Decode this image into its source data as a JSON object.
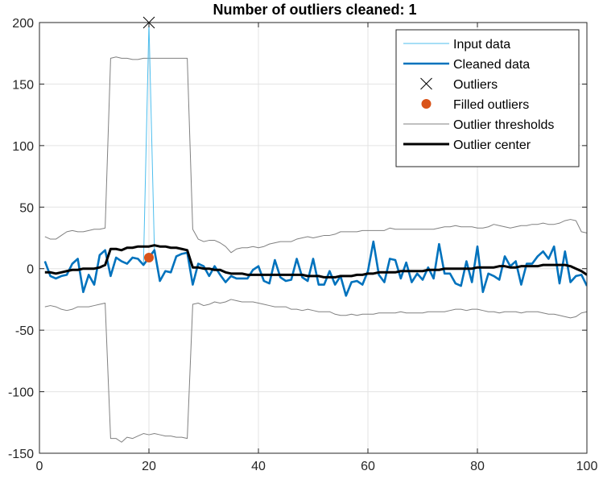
{
  "chart_data": {
    "type": "line",
    "title": "Number of outliers cleaned: 1",
    "xlabel": "",
    "ylabel": "",
    "xlim": [
      0,
      100
    ],
    "ylim": [
      -150,
      200
    ],
    "xticks": [
      0,
      20,
      40,
      60,
      80,
      100
    ],
    "yticks": [
      -150,
      -100,
      -50,
      0,
      50,
      100,
      150,
      200
    ],
    "grid": true,
    "legend_position": "top-right",
    "series": [
      {
        "name": "Input data",
        "color": "#4DBEEE",
        "x": [
          1,
          2,
          3,
          4,
          5,
          6,
          7,
          8,
          9,
          10,
          11,
          12,
          13,
          14,
          15,
          16,
          17,
          18,
          19,
          20,
          21,
          22,
          23,
          24,
          25,
          26,
          27,
          28,
          29,
          30,
          31,
          32,
          33,
          34,
          35,
          36,
          37,
          38,
          39,
          40,
          41,
          42,
          43,
          44,
          45,
          46,
          47,
          48,
          49,
          50,
          51,
          52,
          53,
          54,
          55,
          56,
          57,
          58,
          59,
          60,
          61,
          62,
          63,
          64,
          65,
          66,
          67,
          68,
          69,
          70,
          71,
          72,
          73,
          74,
          75,
          76,
          77,
          78,
          79,
          80,
          81,
          82,
          83,
          84,
          85,
          86,
          87,
          88,
          89,
          90,
          91,
          92,
          93,
          94,
          95,
          96,
          97,
          98,
          99,
          100
        ],
        "y": [
          6,
          -6,
          -8,
          -6,
          -5,
          4,
          8,
          -19,
          -5,
          -13,
          11,
          15,
          -6,
          9,
          6,
          4,
          9,
          8,
          3,
          200,
          15,
          -10,
          -2,
          -3,
          10,
          12,
          13,
          -13,
          4,
          2,
          -6,
          2,
          -5,
          -11,
          -6,
          -8,
          -8,
          -8,
          -1,
          2,
          -10,
          -12,
          7,
          -7,
          -10,
          -9,
          8,
          -7,
          -10,
          8,
          -13,
          -13,
          -2,
          -13,
          -6,
          -22,
          -11,
          -10,
          -13,
          -2,
          22,
          -5,
          -11,
          8,
          7,
          -8,
          5,
          -11,
          -4,
          -9,
          1,
          -8,
          20,
          -4,
          -4,
          -12,
          -14,
          6,
          -11,
          18,
          -19,
          -4,
          -6,
          -9,
          10,
          2,
          6,
          -13,
          4,
          4,
          10,
          14,
          8,
          18,
          -12,
          14,
          -11,
          -6,
          -5,
          -14
        ]
      },
      {
        "name": "Cleaned data",
        "color": "#0072BD",
        "x": [
          1,
          2,
          3,
          4,
          5,
          6,
          7,
          8,
          9,
          10,
          11,
          12,
          13,
          14,
          15,
          16,
          17,
          18,
          19,
          20,
          21,
          22,
          23,
          24,
          25,
          26,
          27,
          28,
          29,
          30,
          31,
          32,
          33,
          34,
          35,
          36,
          37,
          38,
          39,
          40,
          41,
          42,
          43,
          44,
          45,
          46,
          47,
          48,
          49,
          50,
          51,
          52,
          53,
          54,
          55,
          56,
          57,
          58,
          59,
          60,
          61,
          62,
          63,
          64,
          65,
          66,
          67,
          68,
          69,
          70,
          71,
          72,
          73,
          74,
          75,
          76,
          77,
          78,
          79,
          80,
          81,
          82,
          83,
          84,
          85,
          86,
          87,
          88,
          89,
          90,
          91,
          92,
          93,
          94,
          95,
          96,
          97,
          98,
          99,
          100
        ],
        "y": [
          6,
          -6,
          -8,
          -6,
          -5,
          4,
          8,
          -19,
          -5,
          -13,
          11,
          15,
          -6,
          9,
          6,
          4,
          9,
          8,
          3,
          9,
          15,
          -10,
          -2,
          -3,
          10,
          12,
          13,
          -13,
          4,
          2,
          -6,
          2,
          -5,
          -11,
          -6,
          -8,
          -8,
          -8,
          -1,
          2,
          -10,
          -12,
          7,
          -7,
          -10,
          -9,
          8,
          -7,
          -10,
          8,
          -13,
          -13,
          -2,
          -13,
          -6,
          -22,
          -11,
          -10,
          -13,
          -2,
          22,
          -5,
          -11,
          8,
          7,
          -8,
          5,
          -11,
          -4,
          -9,
          1,
          -8,
          20,
          -4,
          -4,
          -12,
          -14,
          6,
          -11,
          18,
          -19,
          -4,
          -6,
          -9,
          10,
          2,
          6,
          -13,
          4,
          4,
          10,
          14,
          8,
          18,
          -12,
          14,
          -11,
          -6,
          -5,
          -14
        ]
      },
      {
        "name": "Outliers",
        "color": "#000000",
        "marker": "x",
        "x": [
          20
        ],
        "y": [
          200
        ]
      },
      {
        "name": "Filled outliers",
        "color": "#D95319",
        "marker": "circle",
        "x": [
          20
        ],
        "y": [
          9
        ]
      },
      {
        "name": "Outlier thresholds",
        "color": "#808080",
        "x": [
          1,
          2,
          3,
          4,
          5,
          6,
          7,
          8,
          9,
          10,
          11,
          12,
          13,
          14,
          15,
          16,
          17,
          18,
          19,
          20,
          21,
          22,
          23,
          24,
          25,
          26,
          27,
          28,
          29,
          30,
          31,
          32,
          33,
          34,
          35,
          36,
          37,
          38,
          39,
          40,
          41,
          42,
          43,
          44,
          45,
          46,
          47,
          48,
          49,
          50,
          51,
          52,
          53,
          54,
          55,
          56,
          57,
          58,
          59,
          60,
          61,
          62,
          63,
          64,
          65,
          66,
          67,
          68,
          69,
          70,
          71,
          72,
          73,
          74,
          75,
          76,
          77,
          78,
          79,
          80,
          81,
          82,
          83,
          84,
          85,
          86,
          87,
          88,
          89,
          90,
          91,
          92,
          93,
          94,
          95,
          96,
          97,
          98,
          99,
          100
        ],
        "upper": [
          26,
          24,
          24,
          27,
          30,
          31,
          30,
          30,
          31,
          32,
          32,
          33,
          171,
          172,
          171,
          171,
          170,
          170,
          171,
          171,
          171,
          171,
          171,
          171,
          171,
          171,
          171,
          32,
          24,
          22,
          23,
          23,
          21,
          18,
          13,
          16,
          17,
          17,
          18,
          17,
          18,
          20,
          21,
          22,
          22,
          22,
          24,
          25,
          26,
          25,
          26,
          27,
          27,
          28,
          30,
          30,
          30,
          30,
          31,
          31,
          31,
          31,
          31,
          33,
          32,
          32,
          32,
          32,
          32,
          32,
          32,
          32,
          33,
          34,
          34,
          35,
          34,
          34,
          34,
          33,
          33,
          34,
          36,
          35,
          34,
          33,
          34,
          35,
          35,
          36,
          36,
          37,
          36,
          36,
          37,
          39,
          40,
          39,
          30,
          29
        ],
        "lower": [
          -31,
          -30,
          -31,
          -33,
          -34,
          -33,
          -31,
          -31,
          -31,
          -30,
          -29,
          -28,
          -138,
          -138,
          -141,
          -137,
          -138,
          -136,
          -134,
          -135,
          -134,
          -135,
          -136,
          -136,
          -137,
          -137,
          -138,
          -29,
          -28,
          -30,
          -29,
          -27,
          -28,
          -27,
          -25,
          -26,
          -27,
          -27,
          -27,
          -28,
          -29,
          -30,
          -31,
          -31,
          -31,
          -33,
          -33,
          -34,
          -33,
          -34,
          -35,
          -35,
          -35,
          -37,
          -38,
          -38,
          -37,
          -38,
          -37,
          -37,
          -37,
          -36,
          -36,
          -36,
          -36,
          -35,
          -36,
          -36,
          -36,
          -36,
          -35,
          -35,
          -35,
          -35,
          -34,
          -33,
          -33,
          -34,
          -33,
          -33,
          -34,
          -35,
          -35,
          -36,
          -35,
          -35,
          -35,
          -36,
          -35,
          -35,
          -35,
          -36,
          -37,
          -37,
          -38,
          -39,
          -40,
          -39,
          -36,
          -35
        ]
      },
      {
        "name": "Outlier center",
        "color": "#000000",
        "x": [
          1,
          2,
          3,
          4,
          5,
          6,
          7,
          8,
          9,
          10,
          11,
          12,
          13,
          14,
          15,
          16,
          17,
          18,
          19,
          20,
          21,
          22,
          23,
          24,
          25,
          26,
          27,
          28,
          29,
          30,
          31,
          32,
          33,
          34,
          35,
          36,
          37,
          38,
          39,
          40,
          41,
          42,
          43,
          44,
          45,
          46,
          47,
          48,
          49,
          50,
          51,
          52,
          53,
          54,
          55,
          56,
          57,
          58,
          59,
          60,
          61,
          62,
          63,
          64,
          65,
          66,
          67,
          68,
          69,
          70,
          71,
          72,
          73,
          74,
          75,
          76,
          77,
          78,
          79,
          80,
          81,
          82,
          83,
          84,
          85,
          86,
          87,
          88,
          89,
          90,
          91,
          92,
          93,
          94,
          95,
          96,
          97,
          98,
          99,
          100
        ],
        "y": [
          -3,
          -3,
          -4,
          -3,
          -2,
          -1,
          -1,
          0,
          0,
          0,
          1,
          3,
          16,
          16,
          15,
          17,
          17,
          18,
          18,
          18,
          19,
          18,
          18,
          17,
          17,
          16,
          15,
          1,
          1,
          0,
          0,
          -1,
          -1,
          -3,
          -4,
          -4,
          -4,
          -5,
          -5,
          -5,
          -5,
          -5,
          -5,
          -5,
          -5,
          -5,
          -5,
          -5,
          -6,
          -6,
          -6,
          -7,
          -7,
          -7,
          -6,
          -6,
          -6,
          -5,
          -5,
          -4,
          -4,
          -3,
          -3,
          -3,
          -3,
          -2,
          -2,
          -2,
          -2,
          -2,
          -1,
          -1,
          -1,
          0,
          0,
          0,
          0,
          0,
          0,
          1,
          1,
          1,
          1,
          2,
          2,
          1,
          1,
          2,
          2,
          2,
          2,
          3,
          3,
          3,
          3,
          3,
          2,
          0,
          -2,
          -5
        ]
      }
    ]
  }
}
